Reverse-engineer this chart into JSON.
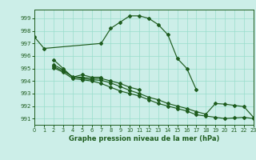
{
  "xlabel": "Graphe pression niveau de la mer (hPa)",
  "bg_color": "#cceee8",
  "grid_color": "#99ddcc",
  "line_color": "#1e5c1e",
  "xlim": [
    0,
    23
  ],
  "ylim": [
    990.5,
    999.7
  ],
  "yticks": [
    991,
    992,
    993,
    994,
    995,
    996,
    997,
    998,
    999
  ],
  "xticks": [
    0,
    1,
    2,
    3,
    4,
    5,
    6,
    7,
    8,
    9,
    10,
    11,
    12,
    13,
    14,
    15,
    16,
    17,
    18,
    19,
    20,
    21,
    22,
    23
  ],
  "series": [
    {
      "x": [
        0,
        1,
        7,
        8,
        9,
        10,
        11,
        12,
        13,
        14,
        15,
        16,
        17
      ],
      "y": [
        997.5,
        996.6,
        997.0,
        998.2,
        998.7,
        999.2,
        999.2,
        999.0,
        998.5,
        997.7,
        995.8,
        995.0,
        993.3
      ]
    },
    {
      "x": [
        2,
        3,
        4,
        5,
        6,
        7
      ],
      "y": [
        995.7,
        995.0,
        994.3,
        994.5,
        994.3,
        994.3
      ]
    },
    {
      "x": [
        2,
        3,
        4,
        5,
        6,
        7,
        8,
        9,
        10,
        11
      ],
      "y": [
        995.3,
        994.9,
        994.3,
        994.3,
        994.2,
        994.2,
        994.0,
        993.8,
        993.5,
        993.3
      ]
    },
    {
      "x": [
        2,
        3,
        4,
        5,
        6,
        7,
        8,
        9,
        10,
        11,
        12,
        13,
        14,
        15,
        16,
        17,
        18,
        19,
        20,
        21,
        22,
        23
      ],
      "y": [
        995.05,
        994.7,
        994.2,
        994.1,
        994.0,
        993.8,
        993.5,
        993.2,
        993.0,
        992.8,
        992.5,
        992.2,
        992.0,
        991.8,
        991.6,
        991.3,
        991.2,
        991.1,
        991.0,
        991.05,
        991.1,
        991.0
      ]
    },
    {
      "x": [
        2,
        3,
        4,
        5,
        6,
        7,
        8,
        9,
        10,
        11,
        12,
        13,
        14,
        15,
        16,
        17,
        18,
        19,
        20,
        21,
        22,
        23
      ],
      "y": [
        995.15,
        994.8,
        994.35,
        994.2,
        994.1,
        994.05,
        993.85,
        993.55,
        993.25,
        993.0,
        992.7,
        992.5,
        992.2,
        992.0,
        991.8,
        991.55,
        991.35,
        992.2,
        992.15,
        992.05,
        991.95,
        991.1
      ]
    }
  ]
}
